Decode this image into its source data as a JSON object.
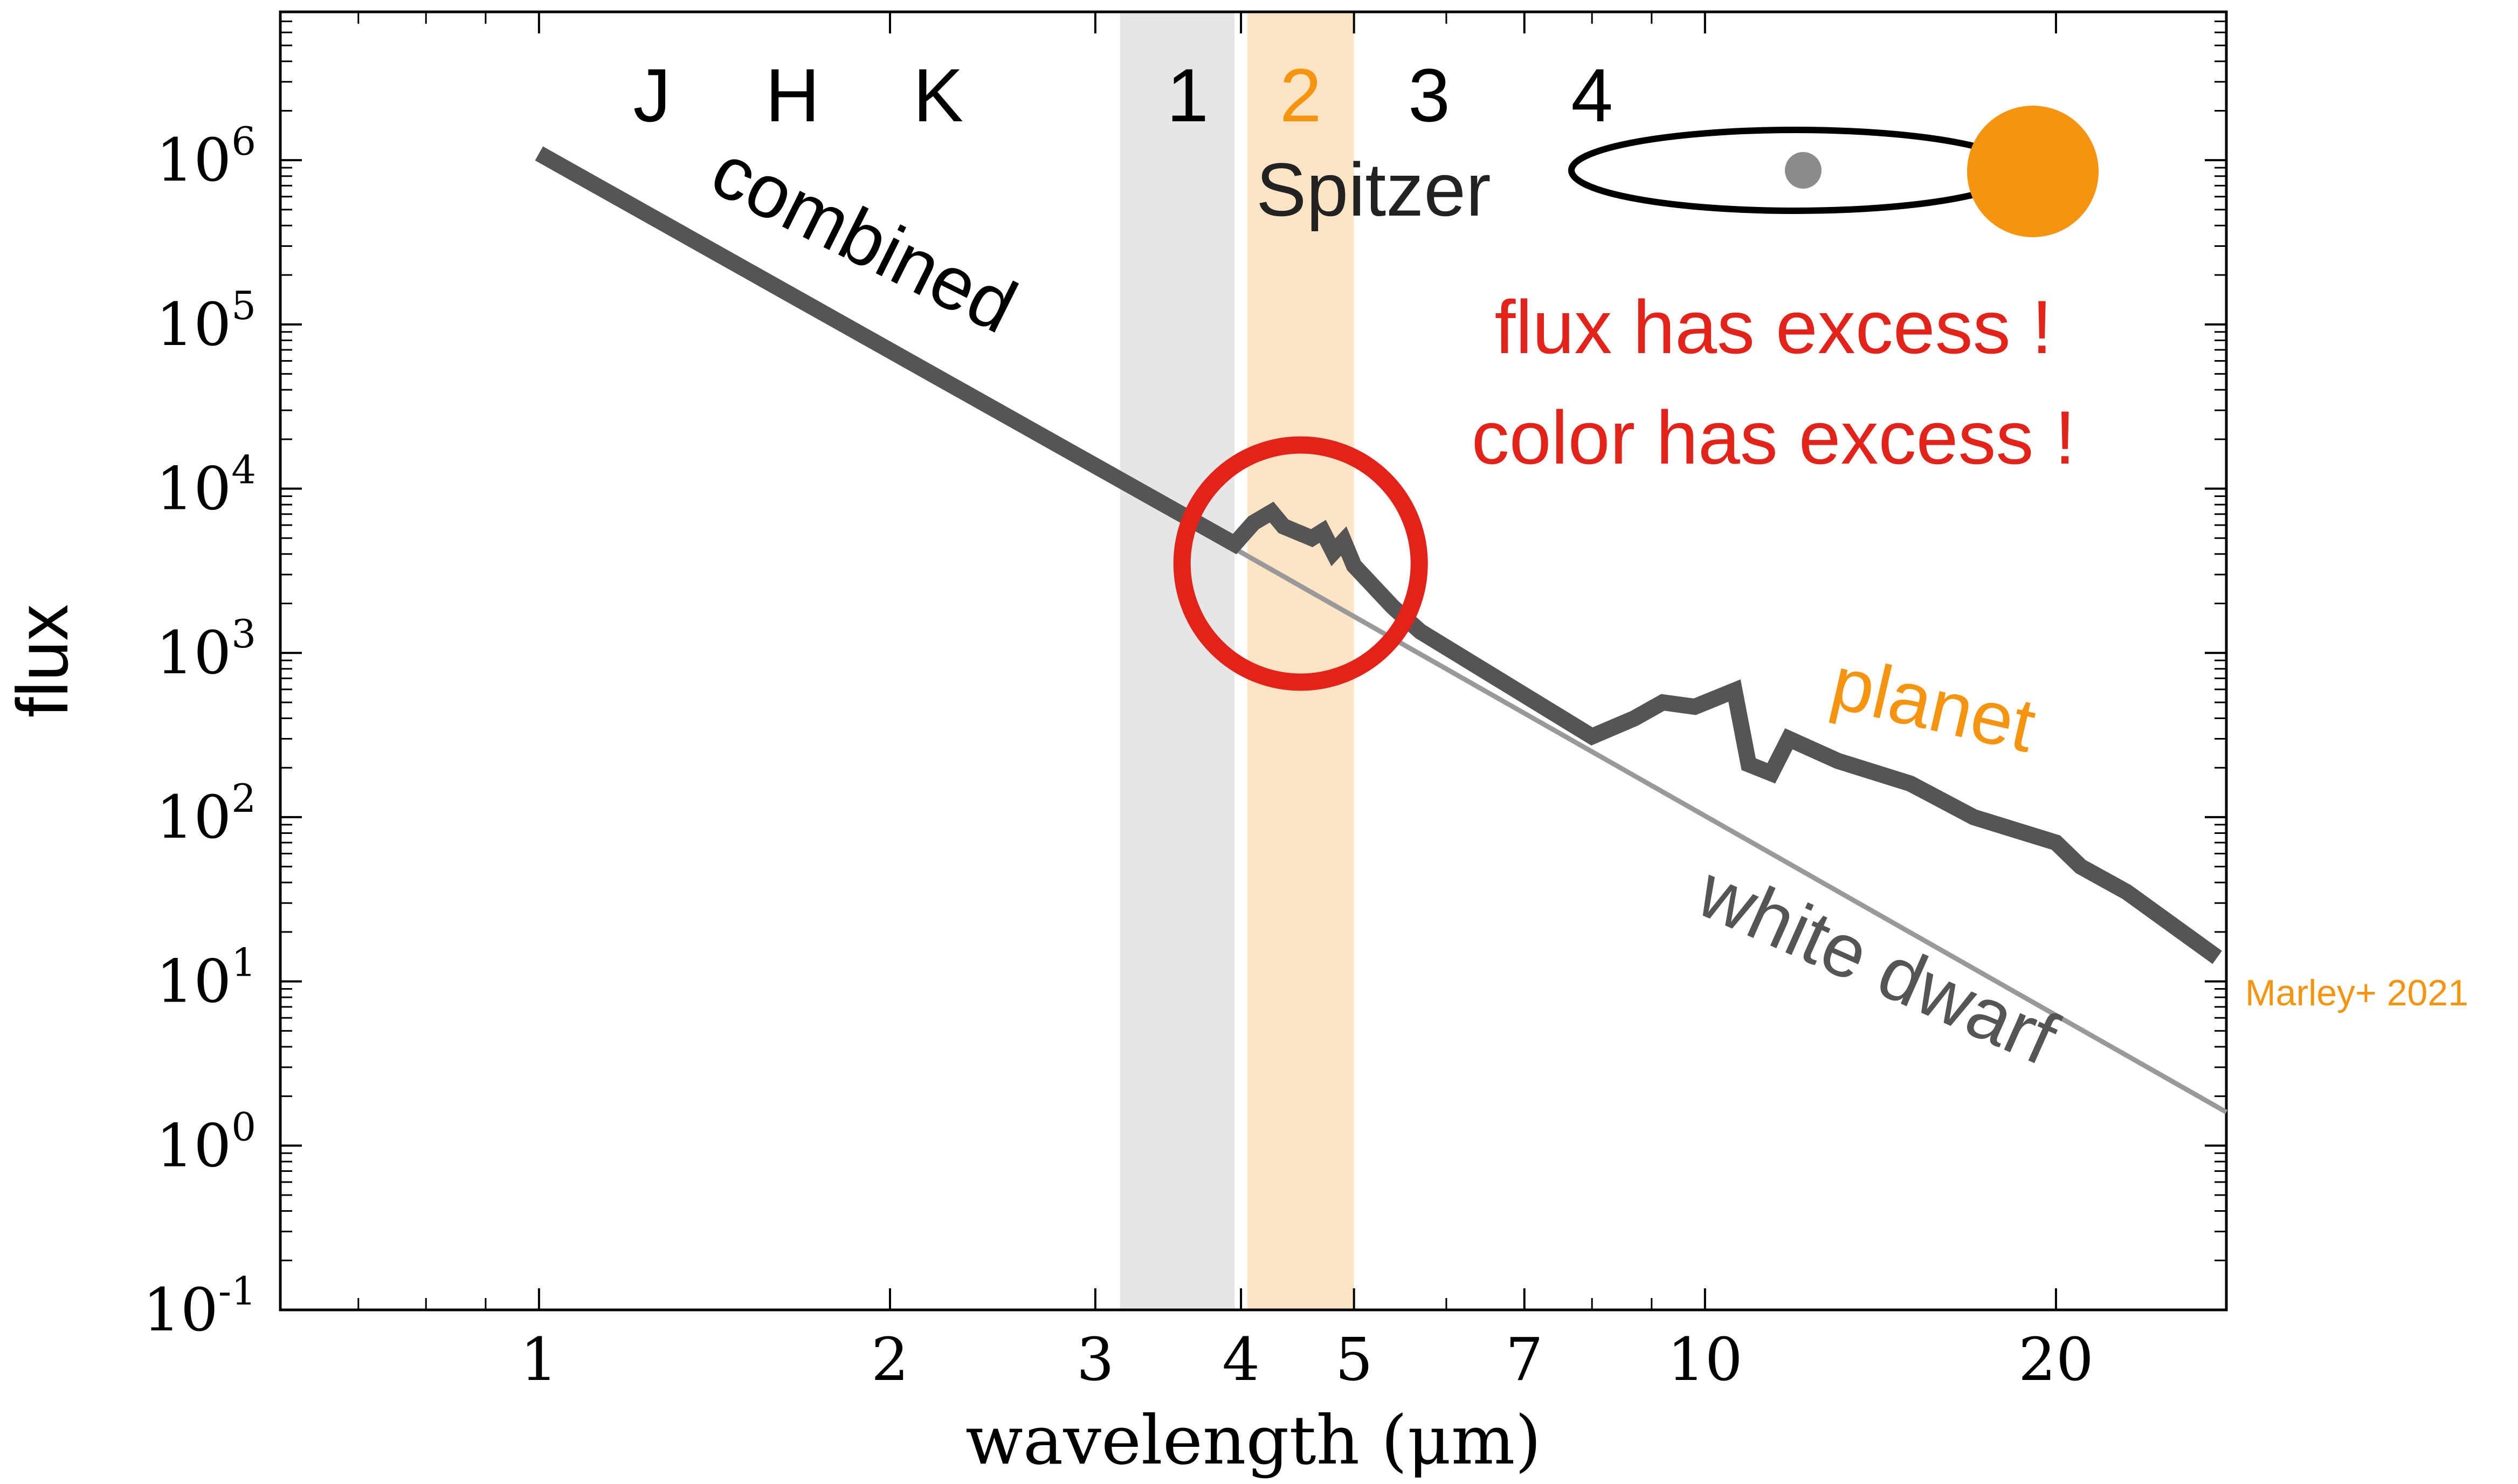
{
  "chart_data": {
    "type": "line",
    "xscale": "log",
    "yscale": "log",
    "xlim": [
      0.6,
      28
    ],
    "ylim": [
      0.1,
      8000000
    ],
    "xlabel": "wavelength (μm)",
    "ylabel": "flux",
    "x_ticks": [
      1,
      2,
      3,
      4,
      5,
      7,
      10,
      20
    ],
    "x_tick_labels": [
      "1",
      "2",
      "3",
      "4",
      "5",
      "7",
      "10",
      "20"
    ],
    "y_ticks": [
      0.1,
      1,
      10,
      100,
      1000,
      10000,
      100000,
      1000000
    ],
    "y_tick_labels": [
      {
        "base": "10",
        "exp": "-1"
      },
      {
        "base": "10",
        "exp": "0"
      },
      {
        "base": "10",
        "exp": "1"
      },
      {
        "base": "10",
        "exp": "2"
      },
      {
        "base": "10",
        "exp": "3"
      },
      {
        "base": "10",
        "exp": "4"
      },
      {
        "base": "10",
        "exp": "5"
      },
      {
        "base": "10",
        "exp": "6"
      }
    ],
    "grid": false,
    "bands": [
      {
        "x": [
          3.15,
          3.95
        ],
        "color": "#e6e6e6"
      },
      {
        "x": [
          4.05,
          5.0
        ],
        "color": "#fde4c4"
      }
    ],
    "series": [
      {
        "name": "combined",
        "color": "#555555",
        "points": [
          [
            1.0,
            1100000
          ],
          [
            3.95,
            4600
          ],
          [
            4.1,
            6200
          ],
          [
            4.25,
            7200
          ],
          [
            4.35,
            5900
          ],
          [
            4.6,
            5000
          ],
          [
            4.7,
            5500
          ],
          [
            4.8,
            4100
          ],
          [
            4.9,
            4800
          ],
          [
            5.0,
            3400
          ],
          [
            5.4,
            1900
          ],
          [
            5.7,
            1350
          ],
          [
            8.0,
            310
          ],
          [
            8.7,
            400
          ],
          [
            9.2,
            500
          ],
          [
            9.8,
            470
          ],
          [
            10.6,
            590
          ],
          [
            10.9,
            210
          ],
          [
            11.4,
            185
          ],
          [
            11.8,
            300
          ],
          [
            13.0,
            220
          ],
          [
            15.0,
            160
          ],
          [
            17.0,
            100
          ],
          [
            20.0,
            70
          ],
          [
            21.0,
            50
          ],
          [
            23.0,
            35
          ],
          [
            27.5,
            14
          ]
        ]
      },
      {
        "name": "white dwarf",
        "color": "#999999",
        "points": [
          [
            1.0,
            1100000
          ],
          [
            28.0,
            1.6
          ]
        ]
      }
    ],
    "band_labels": [
      {
        "text": "J",
        "x": 1.25,
        "color": "#000000"
      },
      {
        "text": "H",
        "x": 1.65,
        "color": "#000000"
      },
      {
        "text": "K",
        "x": 2.2,
        "color": "#000000"
      },
      {
        "text": "1",
        "x": 3.6,
        "color": "#000000"
      },
      {
        "text": "2",
        "x": 4.5,
        "color": "#f7940f"
      },
      {
        "text": "3",
        "x": 5.8,
        "color": "#000000"
      },
      {
        "text": "4",
        "x": 8.0,
        "color": "#000000"
      }
    ],
    "annotations": {
      "spitzer": "Spitzer",
      "combined": "combined",
      "planet": "planet",
      "white_dwarf": "white dwarf",
      "flux_excess": "flux has excess !",
      "color_excess": "color has excess !",
      "credit": "Marley+ 2021"
    },
    "highlight_circle": {
      "center": [
        4.5,
        3500
      ],
      "color": "#e32219"
    },
    "colors": {
      "combined": "#555555",
      "white_dwarf": "#999999",
      "planet": "#f7940f",
      "excess": "#e32219",
      "irac1_band": "#e6e6e6",
      "irac2_band": "#fde4c4",
      "star": "#f7940f",
      "planet_dot": "#8c8c8c"
    }
  }
}
